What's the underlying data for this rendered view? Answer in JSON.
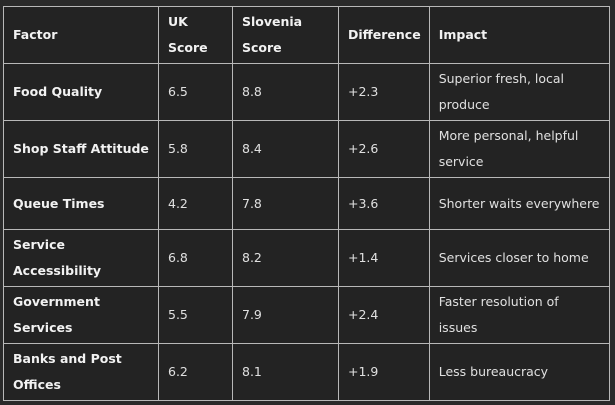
{
  "headers": [
    "Factor",
    "UK Score",
    "Slovenia Score",
    "Difference",
    "Impact"
  ],
  "rows": [
    [
      "Food Quality",
      "6.5",
      "8.8",
      "+2.3",
      "Superior fresh, local produce"
    ],
    [
      "Shop Staff Attitude",
      "5.8",
      "8.4",
      "+2.6",
      "More personal, helpful service"
    ],
    [
      "Queue Times",
      "4.2",
      "7.8",
      "+3.6",
      "Shorter waits everywhere"
    ],
    [
      "Service Accessibility",
      "6.8",
      "8.2",
      "+1.4",
      "Services closer to home"
    ],
    [
      "Government Services",
      "5.5",
      "7.9",
      "+2.4",
      "Faster resolution of issues"
    ],
    [
      "Banks and Post Offices",
      "6.2",
      "8.1",
      "+1.9",
      "Less bureaucracy"
    ]
  ]
}
